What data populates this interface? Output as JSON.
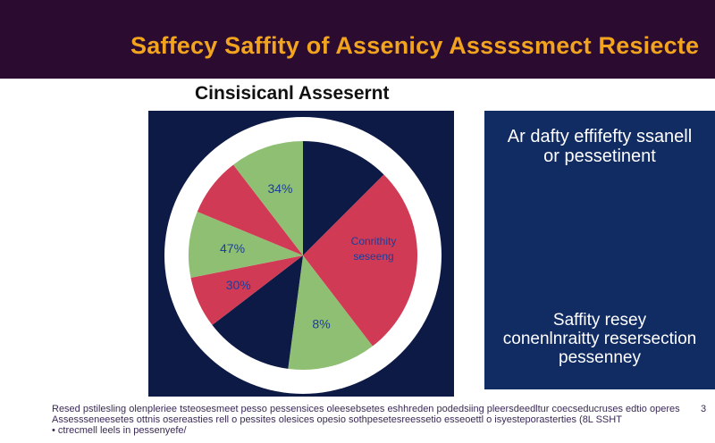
{
  "header": {
    "title": "Saffecy Saffity of Assenicy Asssssmect Resiecte"
  },
  "chart_data": {
    "type": "pie",
    "title": "Cinsisicanl Assesernt",
    "slices": [
      {
        "label": "",
        "value": 12,
        "color": "#0d1a45"
      },
      {
        "label": "",
        "value": 26,
        "color": "#d13a55"
      },
      {
        "label": "8%",
        "value": 12,
        "color": "#8fbf73"
      },
      {
        "label": "",
        "value": 12,
        "color": "#0d1a45"
      },
      {
        "label": "30%",
        "value": 7,
        "color": "#d13a55"
      },
      {
        "label": "47%",
        "value": 9,
        "color": "#8fbf73"
      },
      {
        "label": "",
        "value": 8,
        "color": "#d13a55"
      },
      {
        "label": "34%",
        "value": 10,
        "color": "#8fbf73"
      }
    ],
    "inner_label": [
      "Conrithity",
      "seseeng"
    ],
    "colors": {
      "navy": "#0d1a45",
      "red": "#d13a55",
      "green": "#8fbf73",
      "label_blue": "#1b3e9a"
    }
  },
  "info_panel": {
    "top_lines": [
      "Ar dafty effifefty ssanell",
      "or pessetinent"
    ],
    "bottom_lines": [
      "Saffity resey",
      "conenlnraitty resersection",
      "pessenney"
    ]
  },
  "footer": {
    "lines": [
      "Resed pstilesling olenpleriee tsteosesmeet pesso pessensices oleesebsetes eshhreden podedsiing pleersdeedltur coecseducruses edtio operes",
      "Assessseneesetes ottnis osereasties rell o pessites olesices opesio sothpesetesreessetio esseoettl o isyesteporasterties (8L SSHT",
      "• ctrecmell leels in pessenyefe/"
    ],
    "page_number": "3"
  }
}
